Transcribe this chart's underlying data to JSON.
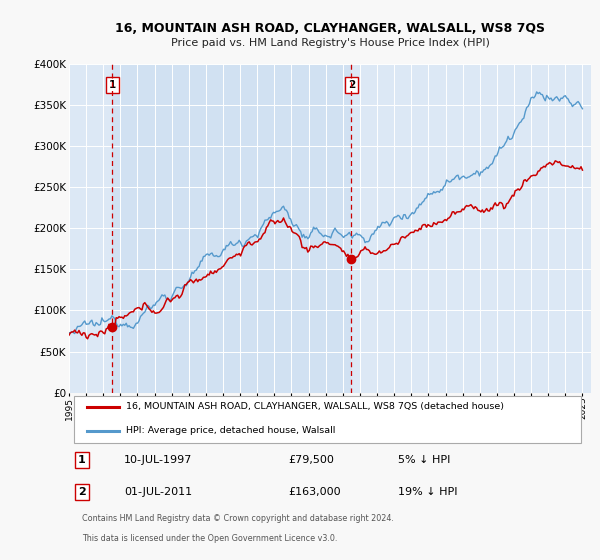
{
  "title": "16, MOUNTAIN ASH ROAD, CLAYHANGER, WALSALL, WS8 7QS",
  "subtitle": "Price paid vs. HM Land Registry's House Price Index (HPI)",
  "background_color": "#f8f8f8",
  "plot_bg_color": "#dce8f5",
  "ylim": [
    0,
    400000
  ],
  "yticks": [
    0,
    50000,
    100000,
    150000,
    200000,
    250000,
    300000,
    350000,
    400000
  ],
  "ytick_labels": [
    "£0",
    "£50K",
    "£100K",
    "£150K",
    "£200K",
    "£250K",
    "£300K",
    "£350K",
    "£400K"
  ],
  "xmin": 1995.0,
  "xmax": 2025.5,
  "sale1_x": 1997.53,
  "sale1_y": 79500,
  "sale1_label": "1",
  "sale1_date": "10-JUL-1997",
  "sale1_price": "£79,500",
  "sale1_hpi": "5% ↓ HPI",
  "sale2_x": 2011.5,
  "sale2_y": 163000,
  "sale2_label": "2",
  "sale2_date": "01-JUL-2011",
  "sale2_price": "£163,000",
  "sale2_hpi": "19% ↓ HPI",
  "red_line_color": "#cc0000",
  "blue_line_color": "#5599cc",
  "marker_color": "#cc0000",
  "vline_color": "#cc0000",
  "shade_color": "#c8ddf0",
  "legend_line1": "16, MOUNTAIN ASH ROAD, CLAYHANGER, WALSALL, WS8 7QS (detached house)",
  "legend_line2": "HPI: Average price, detached house, Walsall",
  "footer1": "Contains HM Land Registry data © Crown copyright and database right 2024.",
  "footer2": "This data is licensed under the Open Government Licence v3.0."
}
